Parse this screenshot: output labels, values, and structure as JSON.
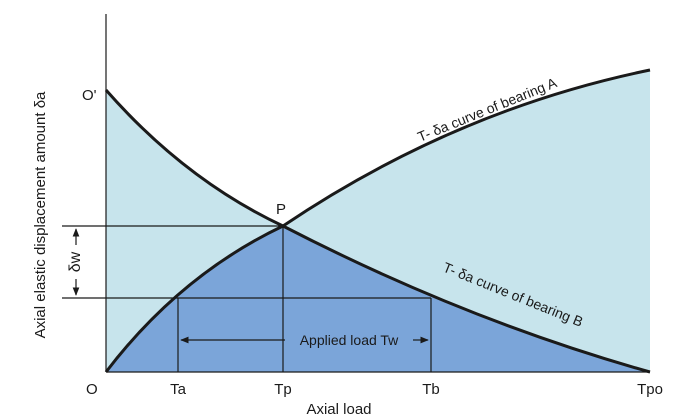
{
  "diagram": {
    "title": "",
    "points": {
      "origin": "O",
      "origin_prime": "O'",
      "intersection": "P"
    },
    "x_ticks": [
      "Ta",
      "Tp",
      "Tb",
      "Tpo"
    ],
    "x_axis_label": "Axial load",
    "y_axis_label": "Axial elastic displacement amount δa",
    "delta_w_label": "δw",
    "curve_a_label": "T- δa curve of bearing A",
    "curve_b_label": "T- δa curve of bearing B",
    "applied_load_label": "Applied load Tw",
    "colors": {
      "light_fill": "#c7e4ec",
      "dark_fill": "#7ba5d9",
      "curve": "#1a1a1a",
      "text": "#1a1a1a"
    }
  }
}
